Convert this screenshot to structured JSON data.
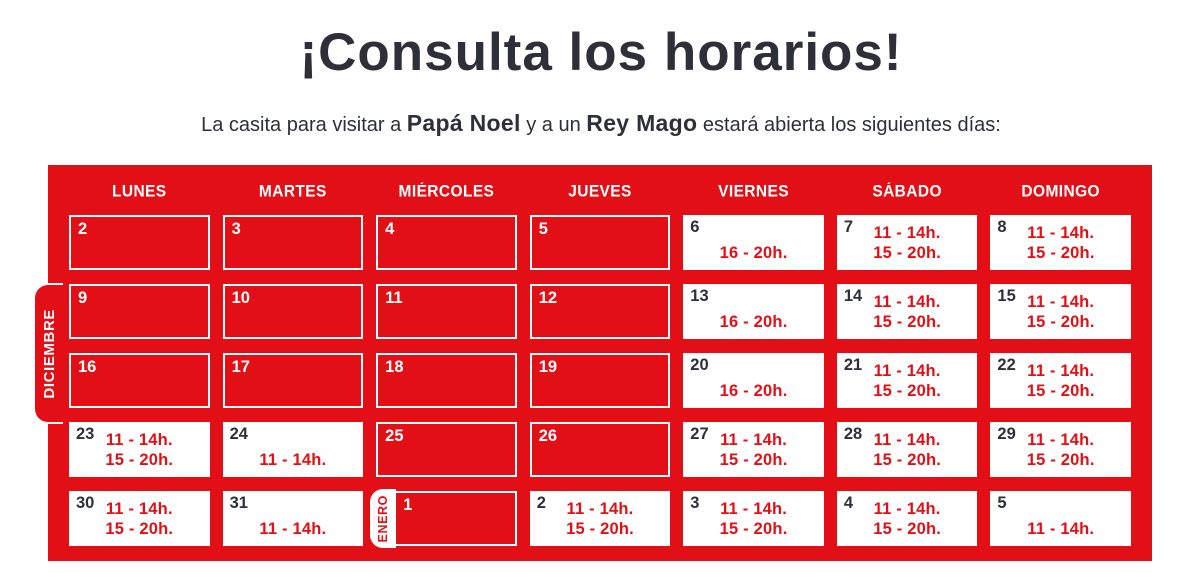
{
  "title": "¡Consulta los horarios!",
  "subtitle": {
    "pre": "La casita para visitar a ",
    "bold1": "Papá Noel",
    "mid": " y a un ",
    "bold2": "Rey Mago",
    "post": " estará abierta los siguientes días:"
  },
  "calendar": {
    "weekday_headers": [
      "LUNES",
      "MARTES",
      "MIÉRCOLES",
      "JUEVES",
      "VIERNES",
      "SÁBADO",
      "DOMINGO"
    ],
    "month_tabs": {
      "december": "DICIEMBRE",
      "january": "ENERO"
    },
    "colors": {
      "red": "#e21016",
      "dark": "#2d3038",
      "white": "#ffffff"
    },
    "weeks": [
      {
        "days": [
          {
            "num": "2",
            "open": false
          },
          {
            "num": "3",
            "open": false
          },
          {
            "num": "4",
            "open": false
          },
          {
            "num": "5",
            "open": false
          },
          {
            "num": "6",
            "open": true,
            "t2": "16 - 20h."
          },
          {
            "num": "7",
            "open": true,
            "t1": "11 - 14h.",
            "t2": "15 - 20h."
          },
          {
            "num": "8",
            "open": true,
            "t1": "11 - 14h.",
            "t2": "15 - 20h."
          }
        ]
      },
      {
        "days": [
          {
            "num": "9",
            "open": false
          },
          {
            "num": "10",
            "open": false
          },
          {
            "num": "11",
            "open": false
          },
          {
            "num": "12",
            "open": false
          },
          {
            "num": "13",
            "open": true,
            "t2": "16 - 20h."
          },
          {
            "num": "14",
            "open": true,
            "t1": "11 - 14h.",
            "t2": "15 - 20h."
          },
          {
            "num": "15",
            "open": true,
            "t1": "11 - 14h.",
            "t2": "15 - 20h."
          }
        ]
      },
      {
        "days": [
          {
            "num": "16",
            "open": false
          },
          {
            "num": "17",
            "open": false
          },
          {
            "num": "18",
            "open": false
          },
          {
            "num": "19",
            "open": false
          },
          {
            "num": "20",
            "open": true,
            "t2": "16 - 20h."
          },
          {
            "num": "21",
            "open": true,
            "t1": "11 - 14h.",
            "t2": "15 - 20h."
          },
          {
            "num": "22",
            "open": true,
            "t1": "11 - 14h.",
            "t2": "15 - 20h."
          }
        ]
      },
      {
        "days": [
          {
            "num": "23",
            "open": true,
            "t1": "11 - 14h.",
            "t2": "15 - 20h."
          },
          {
            "num": "24",
            "open": true,
            "t2": "11 - 14h."
          },
          {
            "num": "25",
            "open": false
          },
          {
            "num": "26",
            "open": false
          },
          {
            "num": "27",
            "open": true,
            "t1": "11 - 14h.",
            "t2": "15 - 20h."
          },
          {
            "num": "28",
            "open": true,
            "t1": "11 - 14h.",
            "t2": "15 - 20h."
          },
          {
            "num": "29",
            "open": true,
            "t1": "11 - 14h.",
            "t2": "15 - 20h."
          }
        ]
      },
      {
        "days": [
          {
            "num": "30",
            "open": true,
            "t1": "11 - 14h.",
            "t2": "15 - 20h."
          },
          {
            "num": "31",
            "open": true,
            "t2": "11 - 14h."
          },
          {
            "num": "1",
            "open": false,
            "month": "ENERO"
          },
          {
            "num": "2",
            "open": true,
            "t1": "11 - 14h.",
            "t2": "15 - 20h."
          },
          {
            "num": "3",
            "open": true,
            "t1": "11 - 14h.",
            "t2": "15 - 20h."
          },
          {
            "num": "4",
            "open": true,
            "t1": "11 - 14h.",
            "t2": "15 - 20h."
          },
          {
            "num": "5",
            "open": true,
            "t2": "11 - 14h."
          }
        ]
      }
    ]
  }
}
